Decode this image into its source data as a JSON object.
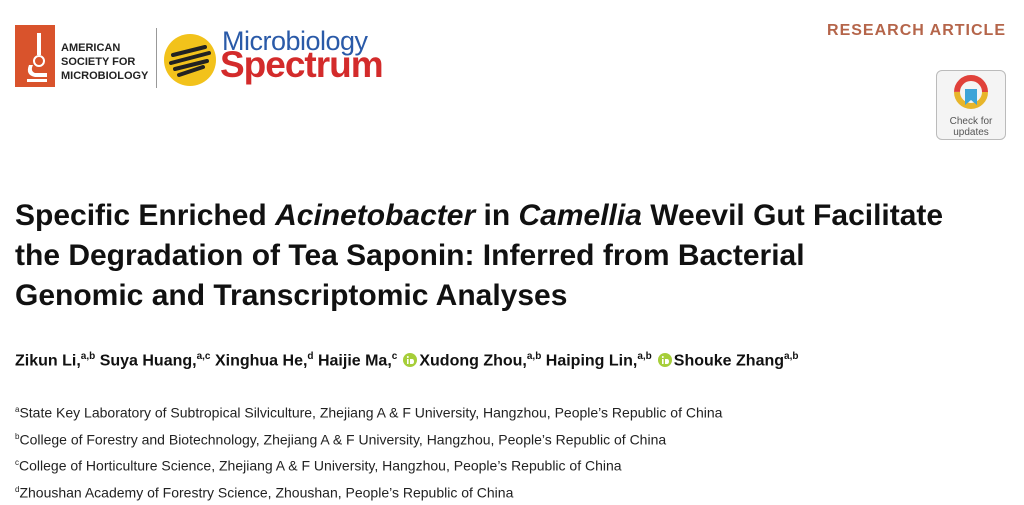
{
  "header": {
    "publisher": [
      "AMERICAN",
      "SOCIETY FOR",
      "MICROBIOLOGY"
    ],
    "journal": [
      "Microbiology",
      "Spectrum"
    ],
    "article_type": "RESEARCH ARTICLE",
    "check_updates": [
      "Check for",
      "updates"
    ]
  },
  "title": {
    "segments": [
      "Specific Enriched ",
      "Acinetobacter",
      " in ",
      "Camellia",
      " Weevil Gut Facilitate",
      "the Degradation of Tea Saponin: Inferred from Bacterial",
      "Genomic and Transcriptomic Analyses"
    ]
  },
  "authors": [
    {
      "name": "Zikun Li,",
      "affiliations": "a,b"
    },
    {
      "name": "Suya Huang,",
      "affiliations": "a,c"
    },
    {
      "name": "Xinghua He,",
      "affiliations": "d"
    },
    {
      "name": "Haijie Ma,",
      "affiliations": "c"
    },
    {
      "name": "Xudong Zhou,",
      "affiliations": "a,b"
    },
    {
      "name": "Haiping Lin,",
      "affiliations": "a,b"
    },
    {
      "name": "Shouke Zhang",
      "affiliations": "a,b"
    }
  ],
  "affiliations": [
    {
      "label": "a",
      "text": "State Key Laboratory of Subtropical Silviculture, Zhejiang A & F University, Hangzhou, People’s Republic of China"
    },
    {
      "label": "b",
      "text": "College of Forestry and Biotechnology, Zhejiang A & F University, Hangzhou, People’s Republic of China"
    },
    {
      "label": "c",
      "text": "College of Horticulture Science, Zhejiang A & F University, Hangzhou, People’s Republic of China"
    },
    {
      "label": "d",
      "text": "Zhoushan Academy of Forestry Science, Zhoushan, People’s Republic of China"
    }
  ]
}
